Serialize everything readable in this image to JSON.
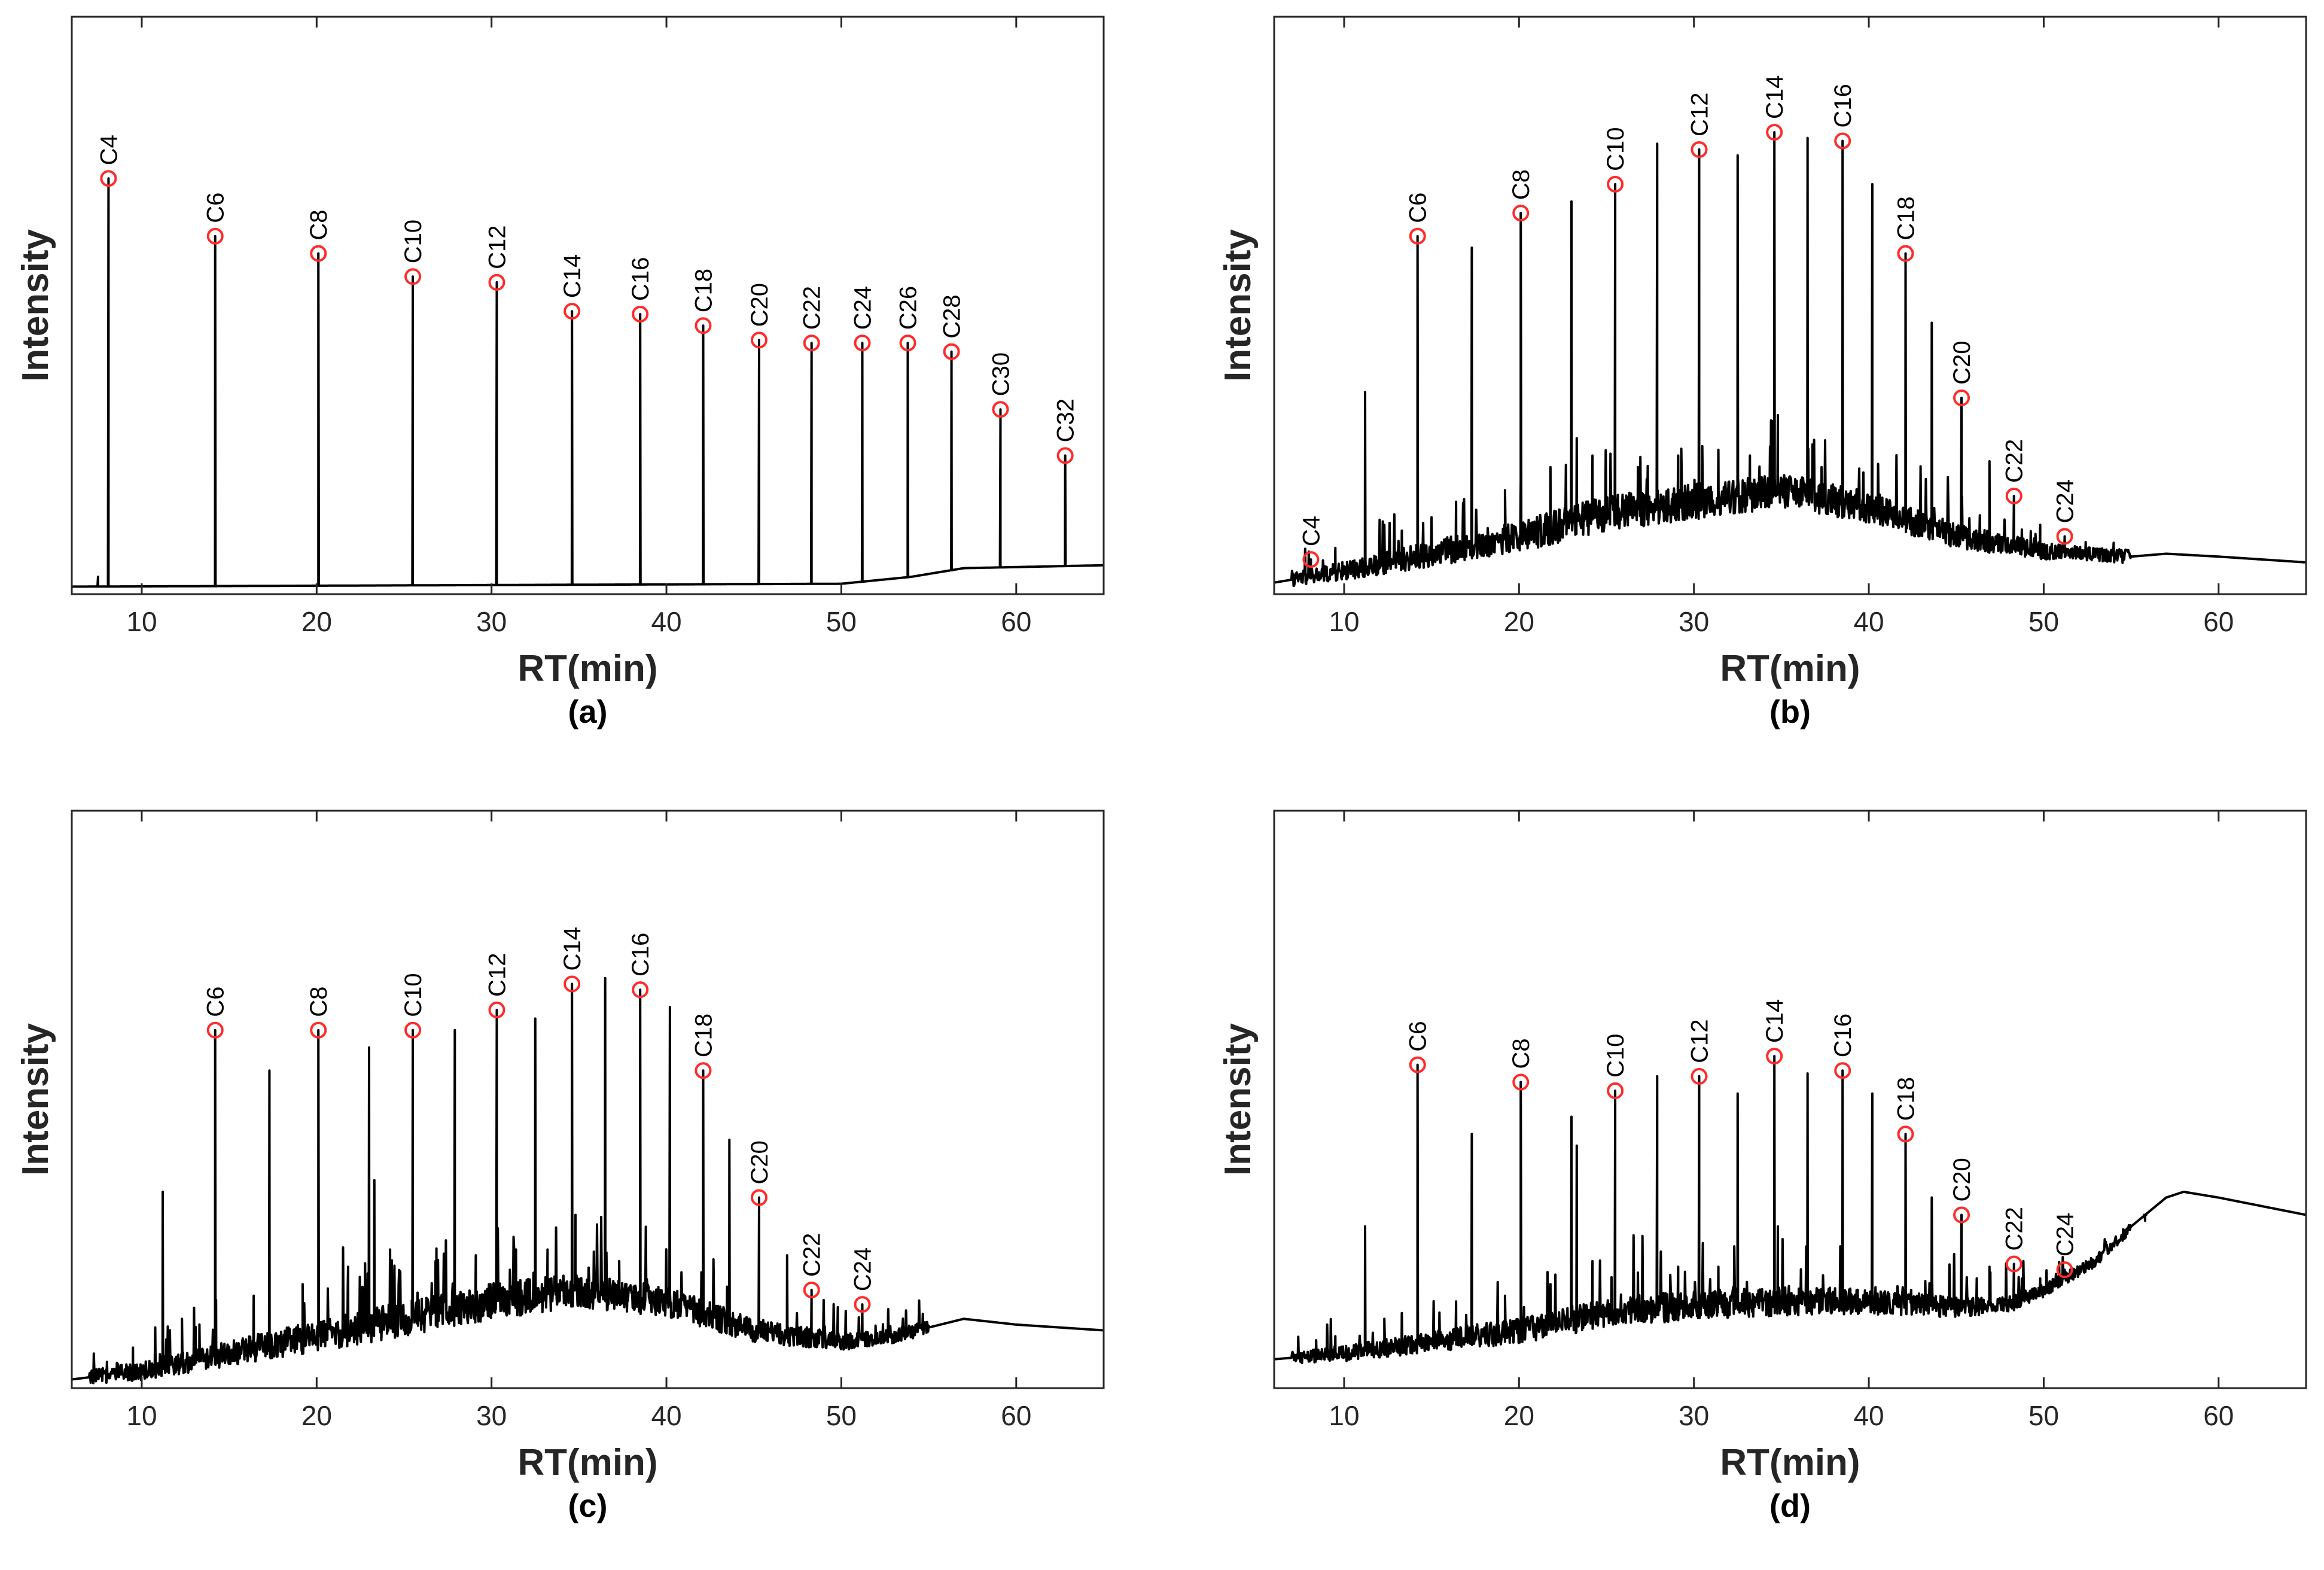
{
  "chart_data": [
    {
      "type": "line",
      "panel_label": "(a)",
      "xlabel": "RT(min)",
      "ylabel": "Intensity",
      "xlim": [
        6,
        65
      ],
      "ylim": [
        0,
        100
      ],
      "xticks": [
        10,
        20,
        30,
        40,
        50,
        60
      ],
      "grid": false,
      "baseline": [
        [
          6,
          1.3
        ],
        [
          50,
          1.8
        ],
        [
          54,
          3.0
        ],
        [
          57,
          4.5
        ],
        [
          65,
          5.0
        ]
      ],
      "noise": 0,
      "hump": null,
      "peaks": [
        {
          "label": "C4",
          "x": 8.1,
          "y": 72
        },
        {
          "label": "C6",
          "x": 14.2,
          "y": 62
        },
        {
          "label": "C8",
          "x": 20.1,
          "y": 59
        },
        {
          "label": "C10",
          "x": 25.5,
          "y": 55
        },
        {
          "label": "C12",
          "x": 30.3,
          "y": 54
        },
        {
          "label": "C14",
          "x": 34.6,
          "y": 49
        },
        {
          "label": "C16",
          "x": 38.5,
          "y": 48.5
        },
        {
          "label": "C18",
          "x": 42.1,
          "y": 46.5
        },
        {
          "label": "C20",
          "x": 45.3,
          "y": 44
        },
        {
          "label": "C22",
          "x": 48.3,
          "y": 43.5
        },
        {
          "label": "C24",
          "x": 51.2,
          "y": 43.5
        },
        {
          "label": "C26",
          "x": 53.8,
          "y": 43.5
        },
        {
          "label": "C28",
          "x": 56.3,
          "y": 42
        },
        {
          "label": "C30",
          "x": 59.1,
          "y": 32
        },
        {
          "label": "C32",
          "x": 62.8,
          "y": 24
        }
      ],
      "other_peaks": [
        {
          "x": 7.5,
          "y": 3
        }
      ]
    },
    {
      "type": "line",
      "panel_label": "(b)",
      "xlabel": "RT(min)",
      "ylabel": "Intensity",
      "xlim": [
        6,
        65
      ],
      "ylim": [
        0,
        100
      ],
      "xticks": [
        10,
        20,
        30,
        40,
        50,
        60
      ],
      "grid": false,
      "baseline": [
        [
          6,
          2
        ],
        [
          10,
          4
        ],
        [
          15,
          7
        ],
        [
          20,
          10
        ],
        [
          25,
          14
        ],
        [
          30,
          16
        ],
        [
          35,
          18
        ],
        [
          40,
          15
        ],
        [
          45,
          10
        ],
        [
          50,
          7.5
        ],
        [
          55,
          6.5
        ],
        [
          57,
          7
        ],
        [
          60,
          6.5
        ],
        [
          65,
          5.5
        ]
      ],
      "noise": 1.2,
      "hump": null,
      "peaks": [
        {
          "label": "C4",
          "x": 8.1,
          "y": 6
        },
        {
          "label": "C6",
          "x": 14.2,
          "y": 62
        },
        {
          "label": "C8",
          "x": 20.1,
          "y": 66
        },
        {
          "label": "C10",
          "x": 25.5,
          "y": 71
        },
        {
          "label": "C12",
          "x": 30.3,
          "y": 77
        },
        {
          "label": "C14",
          "x": 34.6,
          "y": 80
        },
        {
          "label": "C16",
          "x": 38.5,
          "y": 78.5
        },
        {
          "label": "C18",
          "x": 42.1,
          "y": 59
        },
        {
          "label": "C20",
          "x": 45.3,
          "y": 34
        },
        {
          "label": "C22",
          "x": 48.3,
          "y": 17
        },
        {
          "label": "C24",
          "x": 51.2,
          "y": 10
        }
      ],
      "other_peaks": [
        {
          "x": 11.2,
          "y": 35
        },
        {
          "x": 17.3,
          "y": 60
        },
        {
          "x": 23.0,
          "y": 68
        },
        {
          "x": 23.3,
          "y": 27
        },
        {
          "x": 27.9,
          "y": 78
        },
        {
          "x": 32.5,
          "y": 76
        },
        {
          "x": 34.8,
          "y": 31
        },
        {
          "x": 36.5,
          "y": 79
        },
        {
          "x": 40.2,
          "y": 71
        },
        {
          "x": 43.6,
          "y": 47
        },
        {
          "x": 46.9,
          "y": 23
        },
        {
          "x": 49.8,
          "y": 12
        },
        {
          "x": 9.5,
          "y": 8
        },
        {
          "x": 12.3,
          "y": 12
        },
        {
          "x": 13.3,
          "y": 11
        },
        {
          "x": 16.4,
          "y": 16
        },
        {
          "x": 19.2,
          "y": 18
        },
        {
          "x": 21.8,
          "y": 22
        },
        {
          "x": 24.2,
          "y": 24
        },
        {
          "x": 26.8,
          "y": 22
        },
        {
          "x": 29.1,
          "y": 24
        },
        {
          "x": 31.4,
          "y": 25
        },
        {
          "x": 33.2,
          "y": 24
        },
        {
          "x": 37.3,
          "y": 22
        },
        {
          "x": 52.4,
          "y": 9
        }
      ]
    },
    {
      "type": "line",
      "panel_label": "(c)",
      "xlabel": "RT(min)",
      "ylabel": "Intensity",
      "xlim": [
        6,
        65
      ],
      "ylim": [
        0,
        100
      ],
      "xticks": [
        10,
        20,
        30,
        40,
        50,
        60
      ],
      "grid": false,
      "baseline": [
        [
          6,
          1.5
        ],
        [
          10,
          3
        ],
        [
          15,
          6
        ],
        [
          20,
          9
        ],
        [
          25,
          12
        ],
        [
          30,
          15
        ],
        [
          35,
          17
        ],
        [
          40,
          15
        ],
        [
          45,
          10
        ],
        [
          50,
          8
        ],
        [
          53,
          9
        ],
        [
          57,
          12
        ],
        [
          60,
          11
        ],
        [
          65,
          10
        ]
      ],
      "noise": 1.2,
      "hump": null,
      "peaks": [
        {
          "label": "C6",
          "x": 14.2,
          "y": 62
        },
        {
          "label": "C8",
          "x": 20.1,
          "y": 62
        },
        {
          "label": "C10",
          "x": 25.5,
          "y": 62
        },
        {
          "label": "C12",
          "x": 30.3,
          "y": 65.5
        },
        {
          "label": "C14",
          "x": 34.6,
          "y": 70
        },
        {
          "label": "C16",
          "x": 38.5,
          "y": 69
        },
        {
          "label": "C18",
          "x": 42.1,
          "y": 55
        },
        {
          "label": "C20",
          "x": 45.3,
          "y": 33
        },
        {
          "label": "C22",
          "x": 48.3,
          "y": 17
        },
        {
          "label": "C24",
          "x": 51.2,
          "y": 14.5
        }
      ],
      "other_peaks": [
        {
          "x": 11.2,
          "y": 34
        },
        {
          "x": 17.3,
          "y": 55
        },
        {
          "x": 23.0,
          "y": 59
        },
        {
          "x": 23.3,
          "y": 36
        },
        {
          "x": 27.9,
          "y": 62
        },
        {
          "x": 32.5,
          "y": 64
        },
        {
          "x": 34.8,
          "y": 30
        },
        {
          "x": 36.5,
          "y": 71
        },
        {
          "x": 40.2,
          "y": 66
        },
        {
          "x": 43.6,
          "y": 43
        },
        {
          "x": 46.9,
          "y": 23
        },
        {
          "x": 49.8,
          "y": 14
        },
        {
          "x": 9.5,
          "y": 7
        },
        {
          "x": 12.3,
          "y": 12
        },
        {
          "x": 13.3,
          "y": 11
        },
        {
          "x": 16.4,
          "y": 16
        },
        {
          "x": 19.2,
          "y": 18
        },
        {
          "x": 21.8,
          "y": 21
        },
        {
          "x": 24.2,
          "y": 24
        },
        {
          "x": 26.8,
          "y": 22
        },
        {
          "x": 29.1,
          "y": 23
        },
        {
          "x": 31.4,
          "y": 24
        },
        {
          "x": 33.2,
          "y": 24
        },
        {
          "x": 37.3,
          "y": 22
        }
      ]
    },
    {
      "type": "line",
      "panel_label": "(d)",
      "xlabel": "RT(min)",
      "ylabel": "Intensity",
      "xlim": [
        6,
        65
      ],
      "ylim": [
        0,
        100
      ],
      "xticks": [
        10,
        20,
        30,
        40,
        50,
        60
      ],
      "grid": false,
      "baseline": [
        [
          6,
          5
        ],
        [
          10,
          6
        ],
        [
          15,
          8
        ],
        [
          20,
          10
        ],
        [
          25,
          13
        ],
        [
          30,
          14.5
        ],
        [
          35,
          15
        ],
        [
          40,
          15
        ],
        [
          45,
          14
        ],
        [
          48,
          14.5
        ],
        [
          50,
          17
        ],
        [
          53,
          22
        ],
        [
          55,
          28
        ],
        [
          57,
          33
        ],
        [
          58,
          34
        ],
        [
          60,
          33
        ],
        [
          65,
          30
        ]
      ],
      "noise": 1.0,
      "hump": null,
      "peaks": [
        {
          "label": "C6",
          "x": 14.2,
          "y": 56
        },
        {
          "label": "C8",
          "x": 20.1,
          "y": 53
        },
        {
          "label": "C10",
          "x": 25.5,
          "y": 51.5
        },
        {
          "label": "C12",
          "x": 30.3,
          "y": 54
        },
        {
          "label": "C14",
          "x": 34.6,
          "y": 57.5
        },
        {
          "label": "C16",
          "x": 38.5,
          "y": 55
        },
        {
          "label": "C18",
          "x": 42.1,
          "y": 44
        },
        {
          "label": "C20",
          "x": 45.3,
          "y": 30
        },
        {
          "label": "C22",
          "x": 48.3,
          "y": 21.5
        },
        {
          "label": "C24",
          "x": 51.2,
          "y": 20.5
        }
      ],
      "other_peaks": [
        {
          "x": 11.2,
          "y": 28
        },
        {
          "x": 17.3,
          "y": 44
        },
        {
          "x": 23.0,
          "y": 47
        },
        {
          "x": 23.3,
          "y": 42
        },
        {
          "x": 27.9,
          "y": 54
        },
        {
          "x": 32.5,
          "y": 51
        },
        {
          "x": 34.8,
          "y": 28
        },
        {
          "x": 36.5,
          "y": 54.5
        },
        {
          "x": 40.2,
          "y": 51
        },
        {
          "x": 43.6,
          "y": 33
        },
        {
          "x": 46.9,
          "y": 21
        },
        {
          "x": 49.8,
          "y": 19
        },
        {
          "x": 52.4,
          "y": 21
        },
        {
          "x": 55.8,
          "y": 29
        },
        {
          "x": 9.5,
          "y": 9
        },
        {
          "x": 12.3,
          "y": 12
        },
        {
          "x": 13.3,
          "y": 13
        },
        {
          "x": 16.4,
          "y": 15
        },
        {
          "x": 19.2,
          "y": 16
        },
        {
          "x": 21.8,
          "y": 18
        },
        {
          "x": 24.2,
          "y": 22
        },
        {
          "x": 26.8,
          "y": 20
        },
        {
          "x": 29.1,
          "y": 21
        },
        {
          "x": 31.4,
          "y": 21
        }
      ]
    }
  ]
}
